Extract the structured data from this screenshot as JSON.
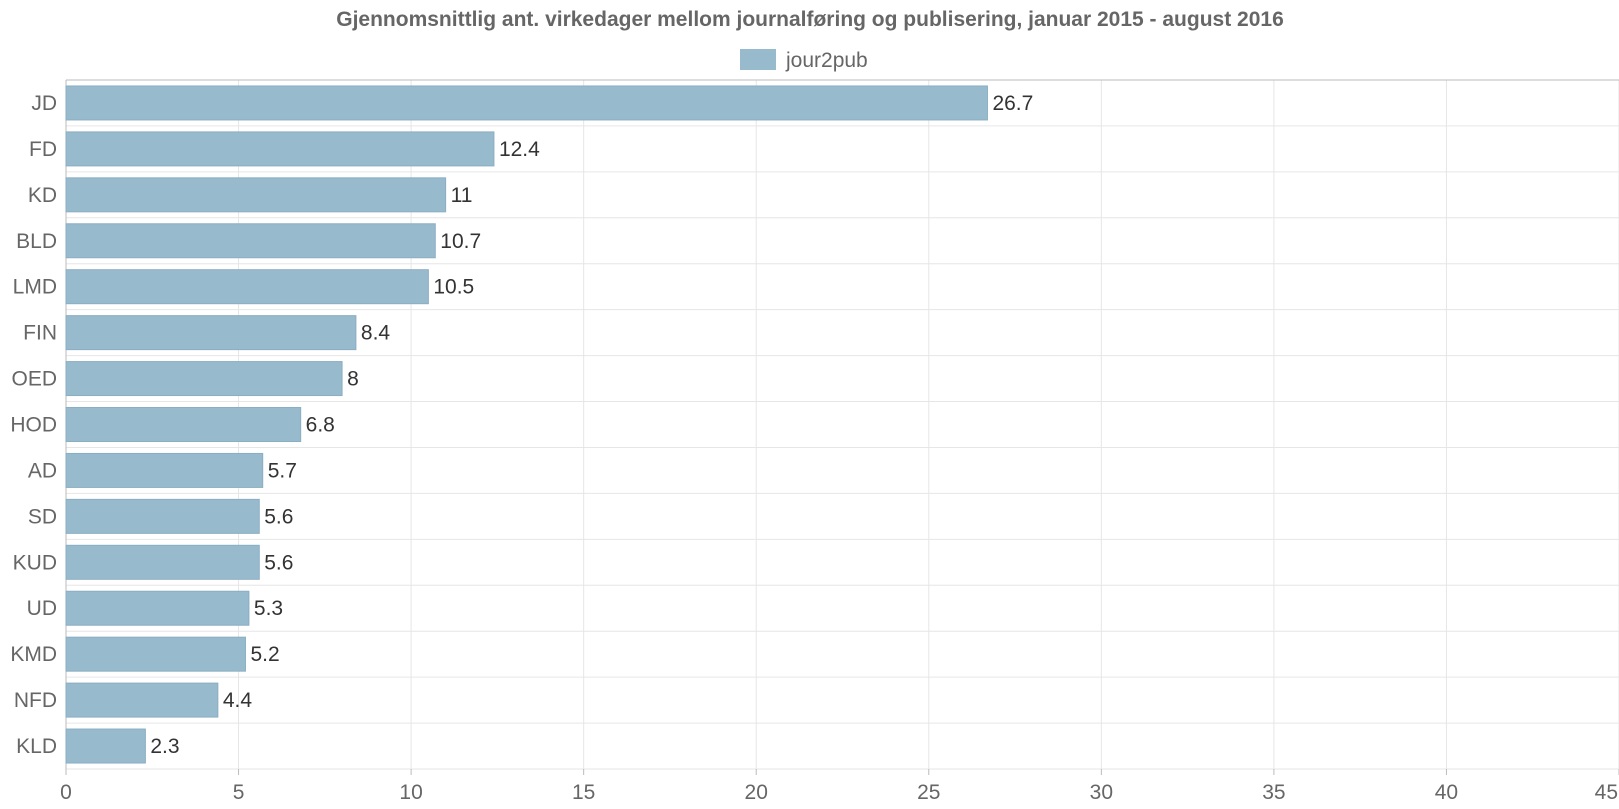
{
  "chart_data": {
    "type": "bar",
    "orientation": "horizontal",
    "title": "Gjennomsnittlig ant. virkedager mellom journalføring og publisering, januar 2015 - august 2016",
    "legend_position": "top-center",
    "grid": true,
    "series": [
      {
        "name": "jour2pub",
        "color": "#98bacd",
        "values": [
          26.7,
          12.4,
          11,
          10.7,
          10.5,
          8.4,
          8,
          6.8,
          5.7,
          5.6,
          5.6,
          5.3,
          5.2,
          4.4,
          2.3
        ]
      }
    ],
    "categories": [
      "JD",
      "FD",
      "KD",
      "BLD",
      "LMD",
      "FIN",
      "OED",
      "HOD",
      "AD",
      "SD",
      "KUD",
      "UD",
      "KMD",
      "NFD",
      "KLD"
    ],
    "value_labels": [
      "26.7",
      "12.4",
      "11",
      "10.7",
      "10.5",
      "8.4",
      "8",
      "6.8",
      "5.7",
      "5.6",
      "5.6",
      "5.3",
      "5.2",
      "4.4",
      "2.3"
    ],
    "xlim": [
      0,
      45
    ],
    "xticks": [
      0,
      5,
      10,
      15,
      20,
      25,
      30,
      35,
      40,
      45
    ],
    "xtick_labels": [
      "0",
      "5",
      "10",
      "15",
      "20",
      "25",
      "30",
      "35",
      "40",
      "45"
    ]
  }
}
